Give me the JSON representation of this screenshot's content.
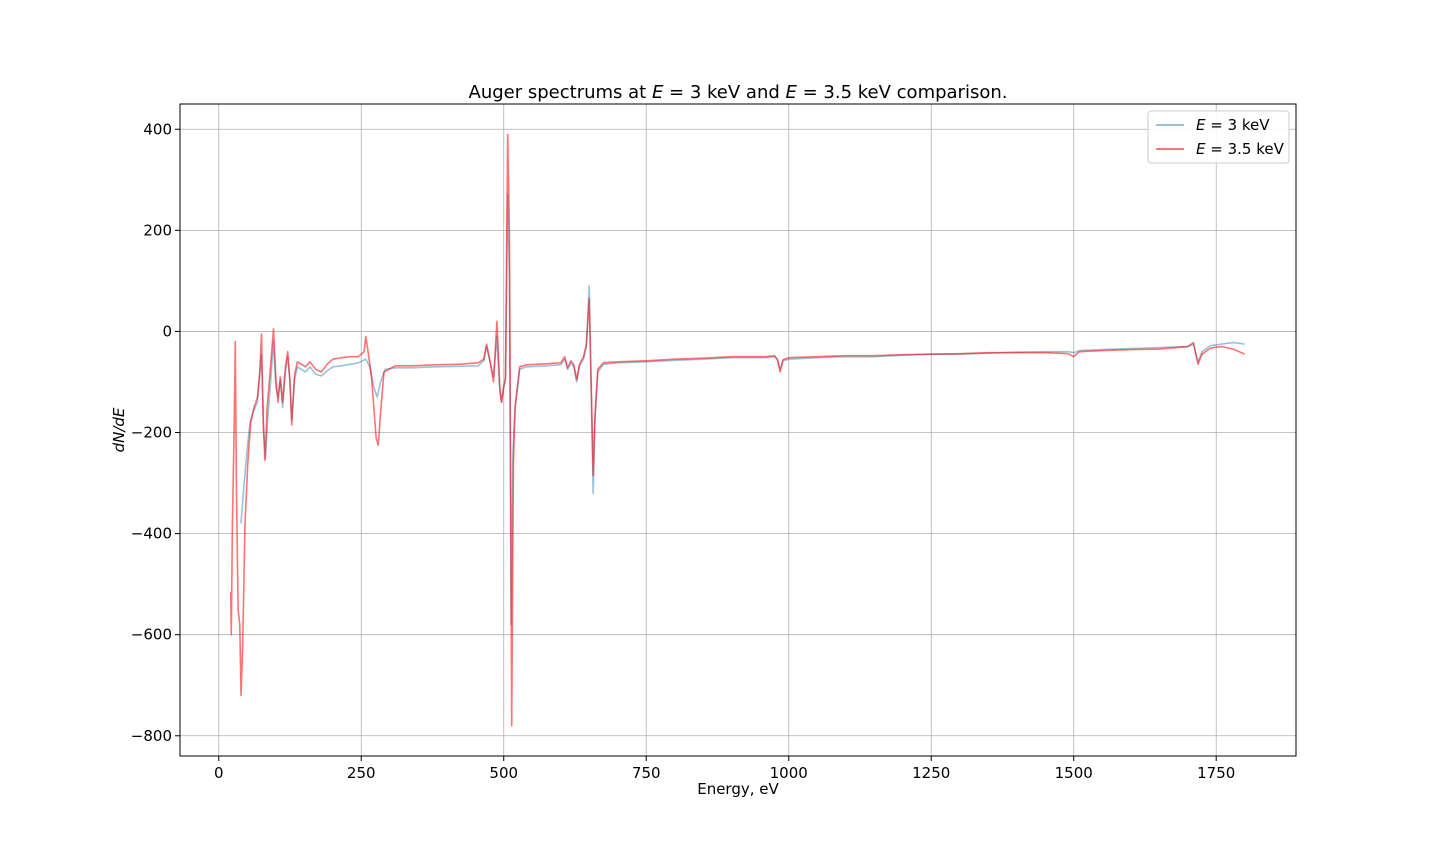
{
  "chart_data": {
    "type": "line",
    "title": {
      "prefix": "Auger spectrums at ",
      "var1": "E",
      "eq1": " = 3 keV and ",
      "var2": "E",
      "eq2": " = 3.5 keV comparison."
    },
    "xlabel": "Energy, eV",
    "ylabel": "dN/dE",
    "xlim": [
      -68,
      1890
    ],
    "ylim": [
      -840,
      450
    ],
    "xticks": [
      0,
      250,
      500,
      750,
      1000,
      1250,
      1500,
      1750
    ],
    "yticks": [
      400,
      200,
      0,
      -200,
      -400,
      -600,
      -800
    ],
    "xtick_labels": [
      "0",
      "250",
      "500",
      "750",
      "1000",
      "1250",
      "1500",
      "1750"
    ],
    "ytick_labels": [
      "400",
      "200",
      "0",
      "−200",
      "−400",
      "−600",
      "−800"
    ],
    "grid": true,
    "legend": {
      "placement": "top-right"
    },
    "series": [
      {
        "name": "= 3 keV",
        "name_var": "E",
        "color": "#1f77b4",
        "opacity": 0.45,
        "points": [
          [
            39,
            -380
          ],
          [
            43,
            -320
          ],
          [
            50,
            -230
          ],
          [
            55,
            -180
          ],
          [
            60,
            -160
          ],
          [
            68,
            -140
          ],
          [
            75,
            -45
          ],
          [
            79,
            -200
          ],
          [
            82,
            -250
          ],
          [
            86,
            -170
          ],
          [
            91,
            -100
          ],
          [
            96,
            -20
          ],
          [
            100,
            -110
          ],
          [
            104,
            -130
          ],
          [
            108,
            -95
          ],
          [
            112,
            -150
          ],
          [
            117,
            -80
          ],
          [
            121,
            -50
          ],
          [
            125,
            -100
          ],
          [
            128,
            -175
          ],
          [
            133,
            -95
          ],
          [
            138,
            -70
          ],
          [
            145,
            -75
          ],
          [
            152,
            -80
          ],
          [
            160,
            -70
          ],
          [
            170,
            -85
          ],
          [
            180,
            -88
          ],
          [
            190,
            -78
          ],
          [
            200,
            -70
          ],
          [
            215,
            -68
          ],
          [
            230,
            -65
          ],
          [
            245,
            -62
          ],
          [
            258,
            -55
          ],
          [
            265,
            -70
          ],
          [
            272,
            -110
          ],
          [
            278,
            -130
          ],
          [
            284,
            -100
          ],
          [
            292,
            -75
          ],
          [
            310,
            -72
          ],
          [
            340,
            -72
          ],
          [
            380,
            -70
          ],
          [
            420,
            -69
          ],
          [
            455,
            -68
          ],
          [
            465,
            -58
          ],
          [
            470,
            -30
          ],
          [
            476,
            -60
          ],
          [
            482,
            -90
          ],
          [
            488,
            -10
          ],
          [
            493,
            -120
          ],
          [
            496,
            -140
          ],
          [
            500,
            -110
          ],
          [
            503,
            -90
          ],
          [
            507,
            270
          ],
          [
            510,
            120
          ],
          [
            513,
            -580
          ],
          [
            516,
            -240
          ],
          [
            520,
            -150
          ],
          [
            528,
            -75
          ],
          [
            540,
            -70
          ],
          [
            575,
            -68
          ],
          [
            600,
            -66
          ],
          [
            607,
            -55
          ],
          [
            612,
            -75
          ],
          [
            618,
            -62
          ],
          [
            623,
            -70
          ],
          [
            628,
            -100
          ],
          [
            633,
            -68
          ],
          [
            640,
            -55
          ],
          [
            645,
            -30
          ],
          [
            650,
            90
          ],
          [
            654,
            -150
          ],
          [
            657,
            -320
          ],
          [
            660,
            -180
          ],
          [
            665,
            -80
          ],
          [
            675,
            -65
          ],
          [
            700,
            -62
          ],
          [
            750,
            -60
          ],
          [
            800,
            -57
          ],
          [
            850,
            -55
          ],
          [
            900,
            -52
          ],
          [
            960,
            -52
          ],
          [
            975,
            -50
          ],
          [
            980,
            -55
          ],
          [
            985,
            -75
          ],
          [
            990,
            -58
          ],
          [
            1000,
            -55
          ],
          [
            1050,
            -52
          ],
          [
            1100,
            -50
          ],
          [
            1150,
            -50
          ],
          [
            1200,
            -47
          ],
          [
            1250,
            -45
          ],
          [
            1300,
            -45
          ],
          [
            1350,
            -43
          ],
          [
            1400,
            -41
          ],
          [
            1450,
            -40
          ],
          [
            1490,
            -40
          ],
          [
            1500,
            -42
          ],
          [
            1510,
            -38
          ],
          [
            1550,
            -36
          ],
          [
            1600,
            -34
          ],
          [
            1650,
            -32
          ],
          [
            1700,
            -30
          ],
          [
            1710,
            -25
          ],
          [
            1718,
            -60
          ],
          [
            1725,
            -40
          ],
          [
            1740,
            -28
          ],
          [
            1760,
            -25
          ],
          [
            1780,
            -22
          ],
          [
            1800,
            -25
          ]
        ]
      },
      {
        "name": "= 3.5 keV",
        "name_var": "E",
        "color": "#ff0000",
        "opacity": 0.55,
        "points": [
          [
            21,
            -515
          ],
          [
            22,
            -600
          ],
          [
            24,
            -380
          ],
          [
            27,
            -200
          ],
          [
            29,
            -20
          ],
          [
            31,
            -300
          ],
          [
            34,
            -550
          ],
          [
            37,
            -580
          ],
          [
            39,
            -720
          ],
          [
            42,
            -620
          ],
          [
            46,
            -380
          ],
          [
            51,
            -260
          ],
          [
            56,
            -180
          ],
          [
            62,
            -150
          ],
          [
            68,
            -130
          ],
          [
            72,
            -80
          ],
          [
            75,
            -5
          ],
          [
            78,
            -180
          ],
          [
            81,
            -255
          ],
          [
            85,
            -150
          ],
          [
            90,
            -80
          ],
          [
            96,
            5
          ],
          [
            100,
            -90
          ],
          [
            104,
            -140
          ],
          [
            108,
            -90
          ],
          [
            112,
            -140
          ],
          [
            117,
            -70
          ],
          [
            121,
            -40
          ],
          [
            125,
            -100
          ],
          [
            128,
            -185
          ],
          [
            133,
            -85
          ],
          [
            138,
            -60
          ],
          [
            145,
            -65
          ],
          [
            152,
            -70
          ],
          [
            160,
            -60
          ],
          [
            170,
            -75
          ],
          [
            180,
            -80
          ],
          [
            190,
            -65
          ],
          [
            200,
            -55
          ],
          [
            215,
            -52
          ],
          [
            230,
            -50
          ],
          [
            245,
            -50
          ],
          [
            255,
            -40
          ],
          [
            258,
            -10
          ],
          [
            262,
            -40
          ],
          [
            268,
            -90
          ],
          [
            272,
            -150
          ],
          [
            276,
            -210
          ],
          [
            280,
            -225
          ],
          [
            284,
            -160
          ],
          [
            290,
            -80
          ],
          [
            310,
            -68
          ],
          [
            340,
            -68
          ],
          [
            380,
            -66
          ],
          [
            420,
            -65
          ],
          [
            455,
            -62
          ],
          [
            465,
            -55
          ],
          [
            470,
            -25
          ],
          [
            476,
            -60
          ],
          [
            482,
            -100
          ],
          [
            488,
            20
          ],
          [
            493,
            -110
          ],
          [
            496,
            -140
          ],
          [
            500,
            -110
          ],
          [
            503,
            -95
          ],
          [
            507,
            390
          ],
          [
            510,
            200
          ],
          [
            514,
            -780
          ],
          [
            517,
            -260
          ],
          [
            520,
            -150
          ],
          [
            528,
            -70
          ],
          [
            540,
            -66
          ],
          [
            575,
            -64
          ],
          [
            600,
            -62
          ],
          [
            607,
            -50
          ],
          [
            612,
            -72
          ],
          [
            618,
            -58
          ],
          [
            623,
            -66
          ],
          [
            628,
            -95
          ],
          [
            633,
            -65
          ],
          [
            640,
            -50
          ],
          [
            645,
            -25
          ],
          [
            650,
            65
          ],
          [
            654,
            -130
          ],
          [
            657,
            -285
          ],
          [
            660,
            -170
          ],
          [
            665,
            -75
          ],
          [
            675,
            -62
          ],
          [
            700,
            -60
          ],
          [
            750,
            -58
          ],
          [
            800,
            -55
          ],
          [
            850,
            -53
          ],
          [
            900,
            -50
          ],
          [
            960,
            -50
          ],
          [
            975,
            -48
          ],
          [
            980,
            -55
          ],
          [
            985,
            -80
          ],
          [
            990,
            -56
          ],
          [
            1000,
            -52
          ],
          [
            1050,
            -50
          ],
          [
            1100,
            -48
          ],
          [
            1150,
            -48
          ],
          [
            1200,
            -46
          ],
          [
            1250,
            -45
          ],
          [
            1300,
            -44
          ],
          [
            1350,
            -42
          ],
          [
            1400,
            -42
          ],
          [
            1450,
            -42
          ],
          [
            1490,
            -44
          ],
          [
            1500,
            -50
          ],
          [
            1510,
            -40
          ],
          [
            1550,
            -38
          ],
          [
            1600,
            -36
          ],
          [
            1650,
            -35
          ],
          [
            1700,
            -30
          ],
          [
            1710,
            -22
          ],
          [
            1718,
            -65
          ],
          [
            1725,
            -45
          ],
          [
            1740,
            -33
          ],
          [
            1760,
            -30
          ],
          [
            1780,
            -35
          ],
          [
            1800,
            -45
          ]
        ]
      }
    ]
  }
}
